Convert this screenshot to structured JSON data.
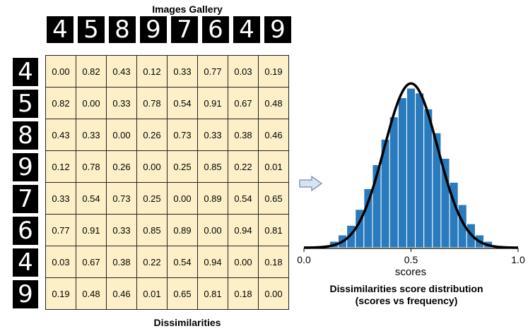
{
  "gallery_title": "Images Gallery",
  "matrix_title": "Dissimilarities",
  "digits": [
    "4",
    "5",
    "8",
    "9",
    "7",
    "6",
    "4",
    "9"
  ],
  "matrix": [
    [
      "0.00",
      "0.82",
      "0.43",
      "0.12",
      "0.33",
      "0.77",
      "0.03",
      "0.19"
    ],
    [
      "0.82",
      "0.00",
      "0.33",
      "0.78",
      "0.54",
      "0.91",
      "0.67",
      "0.48"
    ],
    [
      "0.43",
      "0.33",
      "0.00",
      "0.26",
      "0.73",
      "0.33",
      "0.38",
      "0.46"
    ],
    [
      "0.12",
      "0.78",
      "0.26",
      "0.00",
      "0.25",
      "0.85",
      "0.22",
      "0.01"
    ],
    [
      "0.33",
      "0.54",
      "0.73",
      "0.25",
      "0.00",
      "0.89",
      "0.54",
      "0.65"
    ],
    [
      "0.77",
      "0.91",
      "0.33",
      "0.85",
      "0.89",
      "0.00",
      "0.94",
      "0.81"
    ],
    [
      "0.03",
      "0.67",
      "0.38",
      "0.22",
      "0.54",
      "0.94",
      "0.00",
      "0.18"
    ],
    [
      "0.19",
      "0.48",
      "0.46",
      "0.01",
      "0.65",
      "0.81",
      "0.18",
      "0.00"
    ]
  ],
  "histogram": {
    "xlabel": "scores",
    "x_ticks": [
      "0.0",
      "0.5",
      "1.0"
    ],
    "caption_line1": "Dissimilarities score distribution",
    "caption_line2": "(scores vs frequency)",
    "bar_color": "#2a7bbd",
    "curve_color": "#000000",
    "xlim": [
      0.0,
      1.0
    ],
    "bin_width": 0.04,
    "bin_centers": [
      0.14,
      0.18,
      0.22,
      0.26,
      0.3,
      0.34,
      0.38,
      0.42,
      0.46,
      0.5,
      0.54,
      0.58,
      0.62,
      0.66,
      0.7,
      0.74,
      0.78,
      0.82,
      0.86
    ],
    "frequencies": [
      0.04,
      0.08,
      0.14,
      0.24,
      0.37,
      0.52,
      0.68,
      0.82,
      0.94,
      1.0,
      0.97,
      0.87,
      0.72,
      0.56,
      0.41,
      0.27,
      0.15,
      0.08,
      0.04
    ],
    "curve_mean": 0.5,
    "curve_sd": 0.125
  },
  "colors": {
    "matrix_fill": "#fdf0c8",
    "arrow_fill": "#d5e3f3",
    "arrow_stroke": "#6f8fb4"
  }
}
